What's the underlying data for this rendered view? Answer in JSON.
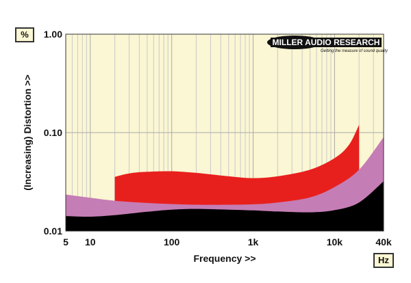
{
  "chart_data": {
    "type": "area",
    "xscale": "log",
    "yscale": "log",
    "xlim": [
      5,
      40000
    ],
    "ylim": [
      0.01,
      1.0
    ],
    "xlabel": "Frequency >>",
    "ylabel": "(Increasing) Distortion >>",
    "y_unit": "%",
    "x_unit": "Hz",
    "x_ticks": [
      {
        "value": 5,
        "label": "5"
      },
      {
        "value": 10,
        "label": "10"
      },
      {
        "value": 100,
        "label": "100"
      },
      {
        "value": 1000,
        "label": "1k"
      },
      {
        "value": 10000,
        "label": "10k"
      },
      {
        "value": 40000,
        "label": "40k"
      }
    ],
    "y_ticks": [
      {
        "value": 1.0,
        "label": "1.00"
      },
      {
        "value": 0.1,
        "label": "0.10"
      },
      {
        "value": 0.01,
        "label": "0.01"
      }
    ],
    "grid": true,
    "background_color": "#fbf6d3",
    "series": [
      {
        "color": "#e8201d",
        "x": [
          20,
          30,
          50,
          100,
          200,
          500,
          1000,
          2000,
          5000,
          10000,
          15000,
          20000
        ],
        "y": [
          0.0355,
          0.0385,
          0.04,
          0.0405,
          0.039,
          0.036,
          0.0345,
          0.036,
          0.042,
          0.055,
          0.075,
          0.12
        ]
      },
      {
        "color": "#c57db5",
        "x": [
          5,
          10,
          20,
          50,
          100,
          200,
          500,
          1000,
          2000,
          5000,
          10000,
          20000,
          40000
        ],
        "y": [
          0.0235,
          0.0218,
          0.0203,
          0.0193,
          0.0188,
          0.0185,
          0.0185,
          0.0187,
          0.0195,
          0.022,
          0.028,
          0.042,
          0.09
        ]
      },
      {
        "color": "#000000",
        "x": [
          5,
          10,
          20,
          50,
          100,
          200,
          500,
          1000,
          2000,
          5000,
          10000,
          20000,
          40000
        ],
        "y": [
          0.0142,
          0.014,
          0.0145,
          0.0157,
          0.0165,
          0.0168,
          0.0165,
          0.0162,
          0.0158,
          0.0155,
          0.0163,
          0.0195,
          0.032
        ]
      }
    ]
  },
  "logo": {
    "name": "MILLER AUDIO RESEARCH",
    "tagline": "Getting the measure of sound quality"
  }
}
